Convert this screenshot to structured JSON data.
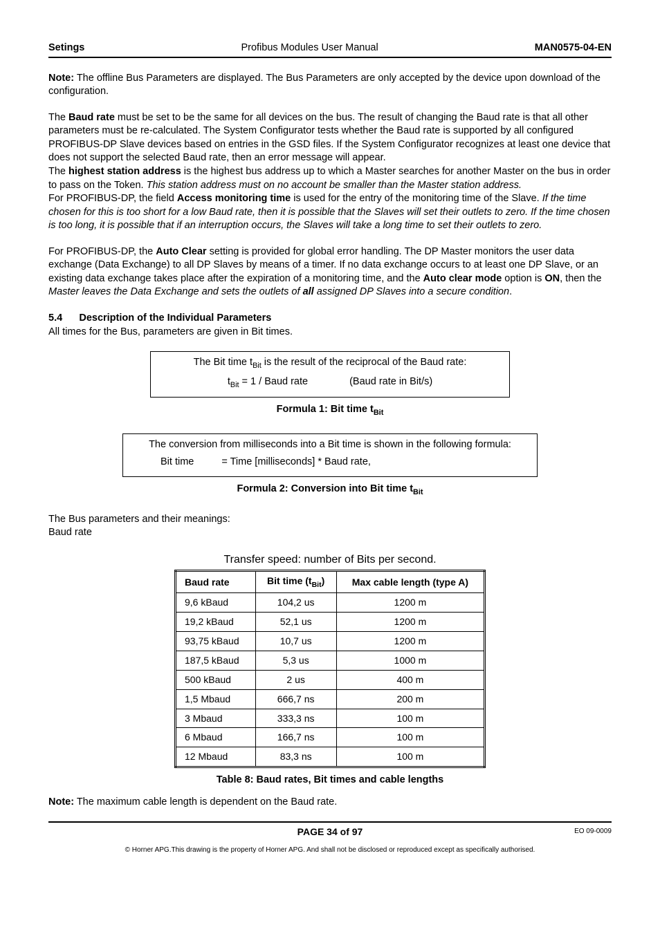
{
  "header": {
    "left": "Setings",
    "center": "Profibus Modules User Manual",
    "right": "MAN0575-04-EN"
  },
  "note1_label": "Note:",
  "note1_text": " The offline Bus Parameters are displayed.  The Bus Parameters are only accepted by the device upon download of the configuration.",
  "p_baud_1a": "The ",
  "p_baud_bold": "Baud rate",
  "p_baud_1b": " must be set to be the same for all devices on the bus.  The result of changing the Baud rate is that all other parameters must be re-calculated.  The System Configurator tests whether the Baud rate is supported by all configured PROFIBUS-DP Slave devices based on entries in the GSD files. If the System Configurator recognizes at least one device that does not support the selected Baud rate, then an error message will appear.",
  "p_hsa_1a": "The ",
  "p_hsa_bold": "highest station address",
  "p_hsa_1b": " is the highest bus address up to which a Master searches for another Master on the bus in order to pass on the Token.  ",
  "p_hsa_italic": "This station address must on no account be smaller than the Master station address.",
  "p_amt_1a": "For PROFIBUS-DP, the field ",
  "p_amt_bold": "Access monitoring time",
  "p_amt_1b": " is used for the entry of the monitoring time of the Slave.  ",
  "p_amt_italic": "If the time chosen for this is too short for a low Baud rate, then it is possible that the Slaves will set their outlets to zero.  If the time chosen is too long, it is possible that if an interruption occurs, the Slaves will take a long time to set their outlets to zero.",
  "p_ac_1a": "For PROFIBUS-DP, the ",
  "p_ac_bold1": "Auto Clear",
  "p_ac_1b": " setting is provided for global error handling.  The DP Master monitors the user data exchange (Data Exchange) to all DP Slaves by means of a timer.  If no data exchange occurs to at least one DP Slave, or an existing data exchange takes place after the expiration of a monitoring time, and the ",
  "p_ac_bold2": "Auto clear mode",
  "p_ac_1c": " option is ",
  "p_ac_bold3": "ON",
  "p_ac_1d": ", then the ",
  "p_ac_italic1": "Master leaves the Data Exchange and sets the outlets of ",
  "p_ac_bolditalic": "all",
  "p_ac_italic2": " assigned DP Slaves into a secure condition",
  "p_ac_1e": ".",
  "section54_num": "5.4",
  "section54_title": "Description of the Individual Parameters",
  "section54_sub": "All times for the Bus, parameters are given in Bit times.",
  "formula1": {
    "line1a": "The Bit time t",
    "line1sub": "Bit",
    "line1b": " is the result of the reciprocal of the Baud rate:",
    "line2a": "t",
    "line2sub": "Bit",
    "line2b": " = 1 / Baud rate",
    "line2c": "(Baud rate in Bit/s)",
    "caption_a": "Formula 1: Bit time t",
    "caption_sub": "Bit"
  },
  "formula2": {
    "line1": "The conversion from milliseconds into a Bit time is shown in the following formula:",
    "label": "Bit time",
    "expr": "= Time [milliseconds] * Baud rate,",
    "caption_a": "Formula 2: Conversion into Bit time t",
    "caption_sub": "Bit"
  },
  "busparams_intro": "The Bus parameters and their meanings:",
  "baudrate_label": "Baud rate",
  "baud_caption": "Transfer speed: number of Bits per second.",
  "baud_table": {
    "col1": "Baud rate",
    "col2a": "Bit time (t",
    "col2sub": "Bit",
    "col2b": ")",
    "col3": "Max cable length (type A)",
    "rows": [
      [
        "9,6 kBaud",
        "104,2 us",
        "1200 m"
      ],
      [
        "19,2 kBaud",
        "52,1 us",
        "1200 m"
      ],
      [
        "93,75 kBaud",
        "10,7 us",
        "1200 m"
      ],
      [
        "187,5 kBaud",
        "5,3 us",
        "1000 m"
      ],
      [
        "500 kBaud",
        "2 us",
        "400 m"
      ],
      [
        "1,5 Mbaud",
        "666,7 ns",
        "200 m"
      ],
      [
        "3 Mbaud",
        "333,3 ns",
        "100 m"
      ],
      [
        "6 Mbaud",
        "166,7 ns",
        "100 m"
      ],
      [
        "12 Mbaud",
        "83,3 ns",
        "100 m"
      ]
    ]
  },
  "table8_caption": "Table 8: Baud rates, Bit times and cable lengths",
  "note2_label": "Note:",
  "note2_text": " The maximum cable length is dependent on the Baud rate.",
  "footer": {
    "page": "PAGE 34 of 97",
    "eo": "EO 09-0009",
    "copyright": "© Horner APG.This drawing is the property of Horner APG. And shall not be disclosed or reproduced except as specifically authorised."
  }
}
